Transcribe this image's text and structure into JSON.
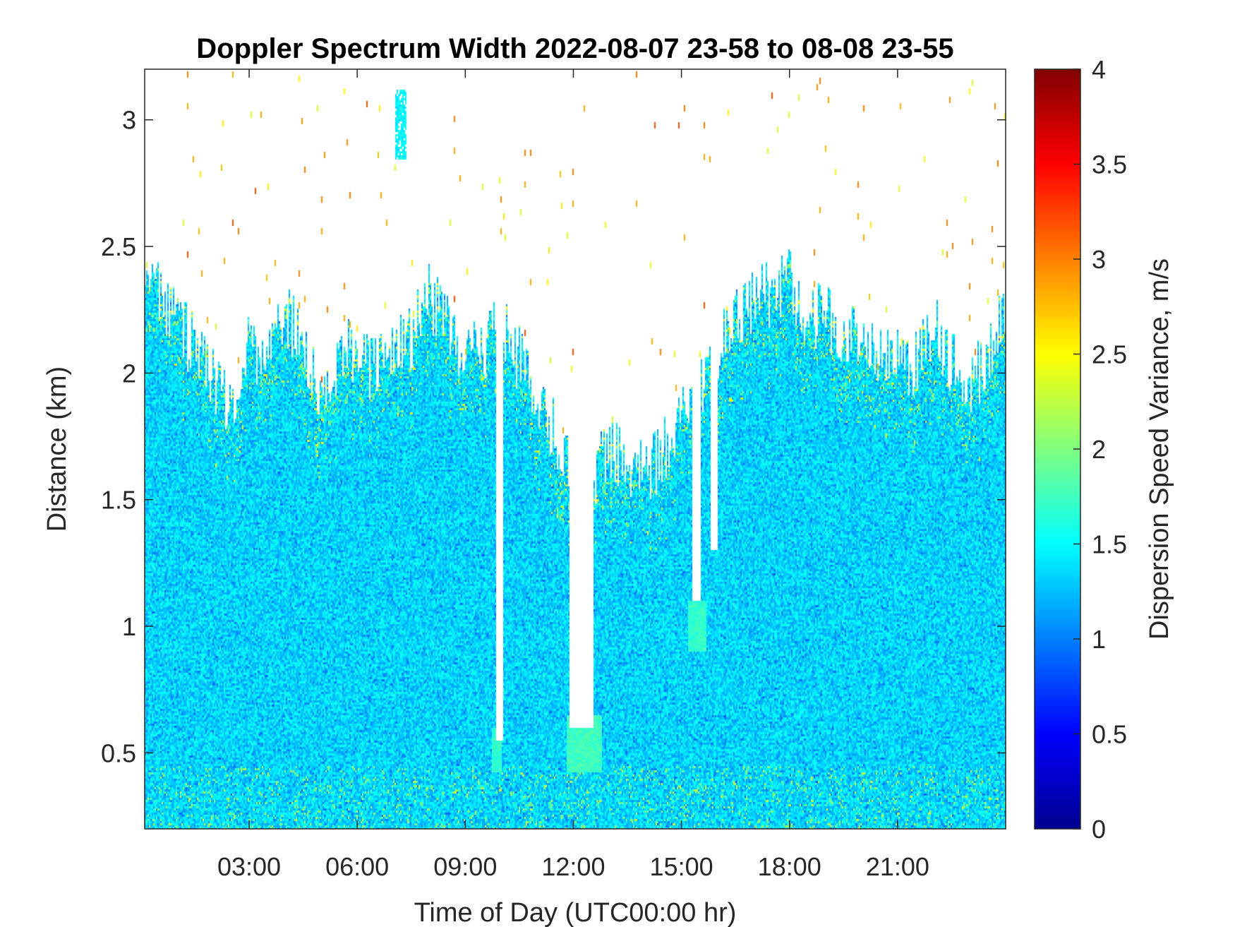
{
  "chart_data": {
    "type": "heatmap",
    "title": "Doppler Spectrum Width 2022-08-07 23-58 to 08-08 23-55",
    "xlabel": "Time of Day (UTC00:00 hr)",
    "ylabel": "Distance (km)",
    "colorbar_label": "Dispersion Speed Variance, m/s",
    "colormap": "jet",
    "xlim": [
      0.1,
      24.0
    ],
    "ylim": [
      0.2,
      3.2
    ],
    "clim": [
      0,
      4
    ],
    "x_ticks": [
      {
        "value": 3,
        "label": "03:00"
      },
      {
        "value": 6,
        "label": "06:00"
      },
      {
        "value": 9,
        "label": "09:00"
      },
      {
        "value": 12,
        "label": "12:00"
      },
      {
        "value": 15,
        "label": "15:00"
      },
      {
        "value": 18,
        "label": "18:00"
      },
      {
        "value": 21,
        "label": "21:00"
      }
    ],
    "y_ticks": [
      {
        "value": 0.5,
        "label": "0.5"
      },
      {
        "value": 1,
        "label": "1"
      },
      {
        "value": 1.5,
        "label": "1.5"
      },
      {
        "value": 2,
        "label": "2"
      },
      {
        "value": 2.5,
        "label": "2.5"
      },
      {
        "value": 3,
        "label": "3"
      }
    ],
    "colorbar_ticks": [
      {
        "value": 0,
        "label": "0"
      },
      {
        "value": 0.5,
        "label": "0.5"
      },
      {
        "value": 1,
        "label": "1"
      },
      {
        "value": 1.5,
        "label": "1.5"
      },
      {
        "value": 2,
        "label": "2"
      },
      {
        "value": 2.5,
        "label": "2.5"
      },
      {
        "value": 3,
        "label": "3"
      },
      {
        "value": 3.5,
        "label": "3.5"
      },
      {
        "value": 4,
        "label": "4"
      }
    ],
    "typical_value": 1.35,
    "signal_top_profile": [
      [
        0.1,
        2.3
      ],
      [
        0.5,
        2.35
      ],
      [
        1.0,
        2.2
      ],
      [
        1.5,
        2.1
      ],
      [
        2.0,
        2.0
      ],
      [
        2.5,
        1.85
      ],
      [
        3.0,
        2.1
      ],
      [
        3.5,
        2.05
      ],
      [
        4.0,
        2.25
      ],
      [
        4.5,
        2.1
      ],
      [
        5.0,
        1.95
      ],
      [
        5.5,
        2.05
      ],
      [
        6.0,
        2.1
      ],
      [
        6.5,
        2.0
      ],
      [
        7.0,
        2.05
      ],
      [
        7.5,
        2.15
      ],
      [
        8.0,
        2.3
      ],
      [
        8.5,
        2.2
      ],
      [
        9.0,
        2.05
      ],
      [
        9.5,
        2.1
      ],
      [
        10.0,
        2.2
      ],
      [
        10.5,
        2.05
      ],
      [
        11.0,
        1.9
      ],
      [
        11.5,
        1.75
      ],
      [
        12.0,
        1.6
      ],
      [
        12.5,
        1.6
      ],
      [
        13.0,
        1.7
      ],
      [
        13.5,
        1.65
      ],
      [
        14.0,
        1.6
      ],
      [
        14.5,
        1.7
      ],
      [
        15.0,
        1.8
      ],
      [
        15.5,
        1.95
      ],
      [
        16.0,
        2.1
      ],
      [
        16.5,
        2.2
      ],
      [
        17.0,
        2.3
      ],
      [
        17.5,
        2.3
      ],
      [
        18.0,
        2.4
      ],
      [
        18.5,
        2.2
      ],
      [
        19.0,
        2.25
      ],
      [
        19.5,
        2.1
      ],
      [
        20.0,
        2.15
      ],
      [
        20.5,
        2.05
      ],
      [
        21.0,
        2.05
      ],
      [
        21.5,
        2.05
      ],
      [
        22.0,
        2.2
      ],
      [
        22.5,
        2.05
      ],
      [
        23.0,
        1.95
      ],
      [
        23.5,
        2.05
      ],
      [
        24.0,
        2.3
      ]
    ],
    "data_gaps": [
      {
        "x_start": 9.85,
        "x_end": 10.05,
        "y_bottom": 0.55
      },
      {
        "x_start": 11.9,
        "x_end": 12.55,
        "y_bottom": 0.6
      },
      {
        "x_start": 15.3,
        "x_end": 15.55,
        "y_bottom": 1.1
      },
      {
        "x_start": 15.8,
        "x_end": 16.0,
        "y_bottom": 1.3
      }
    ],
    "features": [
      {
        "x_start": 7.05,
        "x_end": 7.35,
        "y_start": 2.85,
        "y_end": 3.12,
        "value": 1.5
      },
      {
        "x_start": 9.75,
        "x_end": 10.0,
        "y_start": 0.42,
        "y_end": 0.6,
        "value": 1.7
      },
      {
        "x_start": 11.8,
        "x_end": 12.8,
        "y_start": 0.42,
        "y_end": 0.65,
        "value": 1.75
      },
      {
        "x_start": 15.2,
        "x_end": 15.7,
        "y_start": 0.9,
        "y_end": 1.1,
        "value": 1.7
      }
    ]
  }
}
